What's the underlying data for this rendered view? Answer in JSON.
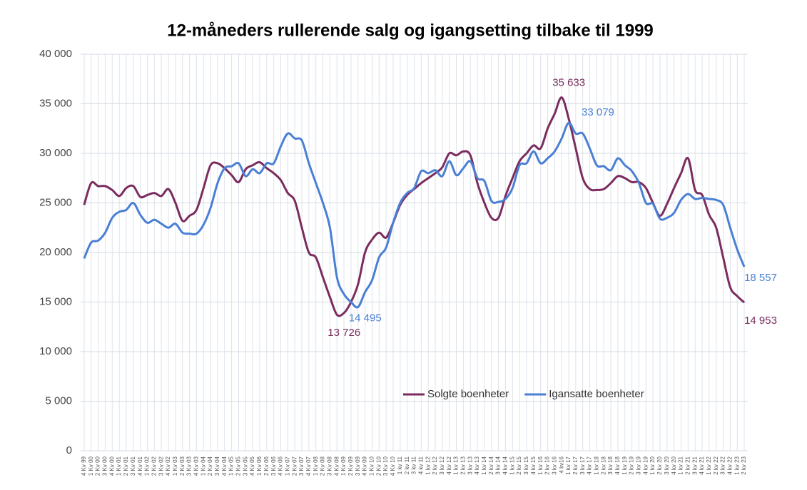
{
  "chart_data": {
    "type": "line",
    "title": "12-måneders rullerende salg og igangsetting tilbake til 1999",
    "categories": [
      "4 Kv 99",
      "1 Kv 00",
      "2 Kv 00",
      "3 Kv 00",
      "4 Kv 00",
      "1 Kv 01",
      "2 Kv 01",
      "3 Kv 01",
      "4 Kv 01",
      "1 Kv 02",
      "2 Kv 02",
      "3 Kv 02",
      "4 Kv 02",
      "1 Kv 03",
      "2 Kv 03",
      "3 Kv 03",
      "4 Kv 03",
      "1 Kv 04",
      "2 Kv 04",
      "3 Kv 04",
      "4 Kv 04",
      "1 Kv 05",
      "2 Kv 05",
      "3 Kv 05",
      "4 Kv 05",
      "1 Kv 06",
      "2 Kv 06",
      "3 Kv 06",
      "4 Kv 06",
      "1 Kv 07",
      "2 Kv 07",
      "3 Kv 07",
      "4 Kv 07",
      "1 Kv 08",
      "2 Kv 08",
      "3 Kv 08",
      "4 Kv 08",
      "1 Kv 09",
      "2 Kv 09",
      "3 Kv 09",
      "4 Kv 09",
      "1 Kv 10",
      "2 Kv 10",
      "3 Kv 10",
      "4 Kv 10",
      "1 kv 11",
      "2 kv 11",
      "3 kv 11",
      "4 kv 11",
      "1 kv 12",
      "2 kv 12",
      "3 kv 12",
      "4 kv 12",
      "1 kv 13",
      "2 kv 13",
      "3 kv 13",
      "4 kv 13",
      "1 kv 14",
      "2 kv 14",
      "3 kv 14",
      "4 kv 14",
      "1 kv 15",
      "2 kv 15",
      "3 kv 15",
      "4 kv 15",
      "1 kv 16",
      "2 kv 16",
      "3 kv 16",
      "4 kv16",
      "1 kv 17",
      "2 kv 17",
      "3 kv 17",
      "4 kv 17",
      "1 kv 18",
      "2 kv 18",
      "3 kv 18",
      "4 kv 18",
      "1 kv 19",
      "2 kv 19",
      "3 kv 19",
      "4 kv 19",
      "1 kv 20",
      "2 kv 20",
      "3 kv 20",
      "4 kv 20",
      "1 kv 21",
      "2 kv 21",
      "3 kv 21",
      "4 kv 21",
      "1 kv 22",
      "2 kv 22",
      "3 kv 22",
      "4 kv 22",
      "1 kv 23",
      "2 kv 23"
    ],
    "series": [
      {
        "name": "Solgte boenheter",
        "color": "#7b2c5e",
        "values": [
          24800,
          27000,
          26700,
          26700,
          26300,
          25700,
          26500,
          26700,
          25600,
          25800,
          26000,
          25700,
          26400,
          25000,
          23200,
          23700,
          24300,
          26500,
          28800,
          29000,
          28500,
          27800,
          27100,
          28400,
          28800,
          29100,
          28500,
          28000,
          27300,
          26000,
          25200,
          22500,
          20000,
          19500,
          17500,
          15500,
          13726,
          13900,
          15000,
          16800,
          20000,
          21300,
          22000,
          21500,
          23000,
          24800,
          25800,
          26400,
          27000,
          27500,
          28000,
          28600,
          30000,
          29800,
          30200,
          29800,
          27000,
          25000,
          23500,
          23500,
          25700,
          27500,
          29200,
          30000,
          30800,
          30500,
          32500,
          34000,
          35633,
          33500,
          30500,
          27500,
          26400,
          26300,
          26400,
          27000,
          27700,
          27500,
          27100,
          27100,
          26500,
          25000,
          23700,
          24900,
          26500,
          28000,
          29500,
          26300,
          25800,
          23800,
          22500,
          19500,
          16500,
          15600,
          14953
        ],
        "value_labels": [
          null,
          null,
          null,
          null,
          null,
          null,
          null,
          null,
          null,
          null,
          null,
          null,
          null,
          null,
          null,
          null,
          null,
          null,
          null,
          null,
          null,
          null,
          null,
          null,
          null,
          null,
          null,
          null,
          null,
          null,
          null,
          null,
          null,
          null,
          null,
          null,
          "13 726",
          null,
          null,
          null,
          null,
          null,
          null,
          null,
          null,
          null,
          null,
          null,
          null,
          null,
          null,
          null,
          null,
          null,
          null,
          null,
          null,
          null,
          null,
          null,
          null,
          null,
          null,
          null,
          null,
          null,
          null,
          null,
          "35 633",
          null,
          null,
          null,
          null,
          null,
          null,
          null,
          null,
          null,
          null,
          null,
          null,
          null,
          null,
          null,
          null,
          null,
          null,
          null,
          null,
          null,
          null,
          null,
          null,
          null,
          "14 953"
        ]
      },
      {
        "name": "Igansatte boenheter",
        "color": "#4a7fd4",
        "values": [
          19400,
          21000,
          21200,
          22000,
          23500,
          24100,
          24300,
          25000,
          23800,
          23000,
          23300,
          22900,
          22500,
          22900,
          22000,
          21900,
          21900,
          22800,
          24500,
          27000,
          28500,
          28700,
          29000,
          27700,
          28400,
          28000,
          29000,
          29000,
          30700,
          32000,
          31500,
          31300,
          29000,
          27000,
          25000,
          22500,
          17500,
          15800,
          15000,
          14495,
          16000,
          17200,
          19500,
          20500,
          23000,
          25000,
          26000,
          26500,
          28200,
          28000,
          28300,
          27700,
          29200,
          27800,
          28500,
          29200,
          27500,
          27200,
          25200,
          25100,
          25400,
          26500,
          28800,
          29000,
          30200,
          29000,
          29500,
          30200,
          31500,
          33079,
          32000,
          32000,
          30500,
          28800,
          28700,
          28300,
          29500,
          28800,
          28200,
          27000,
          25000,
          24900,
          23400,
          23500,
          24000,
          25300,
          25900,
          25400,
          25500,
          25400,
          25300,
          24800,
          22500,
          20300,
          18557
        ],
        "value_labels": [
          null,
          null,
          null,
          null,
          null,
          null,
          null,
          null,
          null,
          null,
          null,
          null,
          null,
          null,
          null,
          null,
          null,
          null,
          null,
          null,
          null,
          null,
          null,
          null,
          null,
          null,
          null,
          null,
          null,
          null,
          null,
          null,
          null,
          null,
          null,
          null,
          null,
          null,
          null,
          "14 495",
          null,
          null,
          null,
          null,
          null,
          null,
          null,
          null,
          null,
          null,
          null,
          null,
          null,
          null,
          null,
          null,
          null,
          null,
          null,
          null,
          null,
          null,
          null,
          null,
          null,
          null,
          null,
          null,
          null,
          "33 079",
          null,
          null,
          null,
          null,
          null,
          null,
          null,
          null,
          null,
          null,
          null,
          null,
          null,
          null,
          null,
          null,
          null,
          null,
          null,
          null,
          null,
          null,
          null,
          null,
          "18 557"
        ]
      }
    ],
    "ylim": [
      0,
      40000
    ],
    "yticks": [
      0,
      {
        "value": 5000,
        "label": "5 000"
      },
      {
        "value": 10000,
        "label": "10 000"
      },
      {
        "value": 15000,
        "label": "15 000"
      },
      {
        "value": 20000,
        "label": "20 000"
      },
      {
        "value": 25000,
        "label": "25 000"
      },
      {
        "value": 30000,
        "label": "30 000"
      },
      {
        "value": 35000,
        "label": "35 000"
      },
      {
        "value": 40000,
        "label": "40 000"
      }
    ],
    "grid": true,
    "legend": "bottom"
  }
}
